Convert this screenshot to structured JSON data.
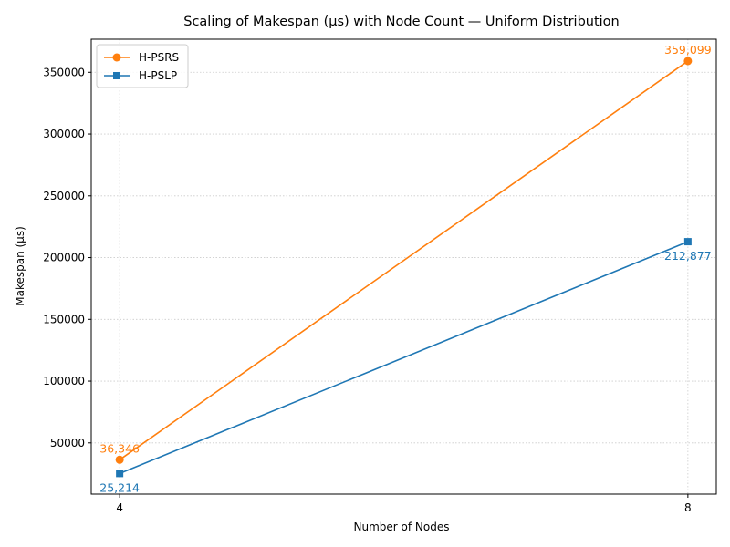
{
  "chart_data": {
    "type": "line",
    "title": "Scaling of Makespan (µs) with Node Count — Uniform Distribution",
    "xlabel": "Number of Nodes",
    "ylabel": "Makespan (µs)",
    "x": [
      4,
      8
    ],
    "x_ticks": [
      "4",
      "8"
    ],
    "y_ticks": [
      50000,
      100000,
      150000,
      200000,
      250000,
      300000,
      350000
    ],
    "y_tick_labels": [
      "50000",
      "100000",
      "150000",
      "200000",
      "250000",
      "300000",
      "350000"
    ],
    "xlim": [
      3.8,
      8.2
    ],
    "ylim": [
      8520,
      376780
    ],
    "grid": true,
    "legend_position": "top-left",
    "series": [
      {
        "name": "H-PSRS",
        "color": "#ff7f0e",
        "marker": "circle",
        "values": [
          36346,
          359099
        ],
        "data_labels": [
          "36,346",
          "359,099"
        ],
        "label_position": "above"
      },
      {
        "name": "H-PSLP",
        "color": "#1f77b4",
        "marker": "square",
        "values": [
          25214,
          212877
        ],
        "data_labels": [
          "25,214",
          "212,877"
        ],
        "label_position": "below"
      }
    ]
  }
}
